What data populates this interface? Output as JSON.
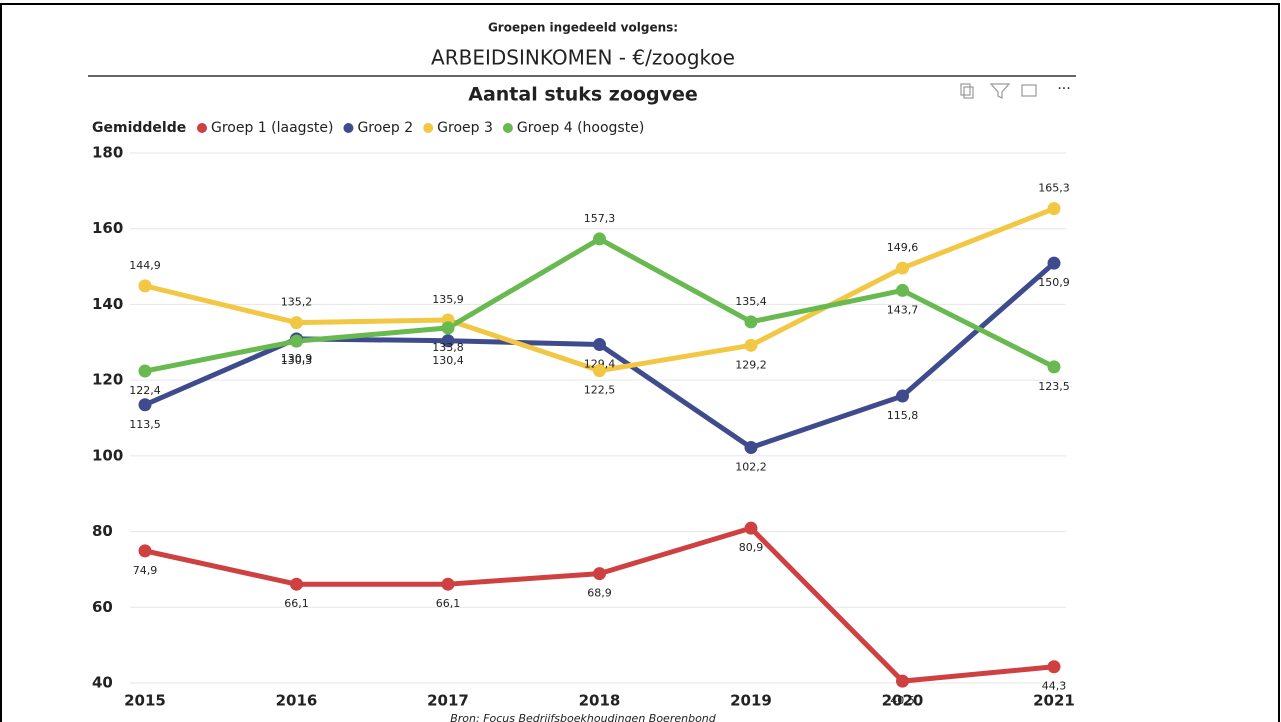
{
  "header": {
    "label": "Groepen ingedeeld volgens:",
    "title": "ARBEIDSINKOMEN - €/zoogkoe"
  },
  "chart_data": {
    "type": "line",
    "title": "Aantal stuks zoogvee",
    "legend_title": "Gemiddelde",
    "categories": [
      "2015",
      "2016",
      "2017",
      "2018",
      "2019",
      "2020",
      "2021"
    ],
    "series": [
      {
        "name": "Groep 1 (laagste)",
        "color": "#cf4040",
        "values": [
          74.9,
          66.1,
          66.1,
          68.9,
          80.9,
          40.5,
          44.3
        ],
        "value_labels": [
          "74,9",
          "66,1",
          "66,1",
          "68,9",
          "80,9",
          "40,5",
          "44,3"
        ]
      },
      {
        "name": "Groep 2",
        "color": "#3e4c8d",
        "values": [
          113.5,
          130.9,
          130.4,
          129.4,
          102.2,
          115.8,
          150.9
        ],
        "value_labels": [
          "113,5",
          "130,9",
          "130,4",
          "129,4",
          "102,2",
          "115,8",
          "150,9"
        ]
      },
      {
        "name": "Groep 3",
        "color": "#f2c744",
        "values": [
          144.9,
          135.2,
          135.9,
          122.5,
          129.2,
          149.6,
          165.3
        ],
        "value_labels": [
          "144,9",
          "135,2",
          "135,9",
          "122,5",
          "129,2",
          "149,6",
          "165,3"
        ]
      },
      {
        "name": "Groep 4 (hoogste)",
        "color": "#68b94f",
        "values": [
          122.4,
          130.3,
          133.8,
          157.3,
          135.4,
          143.7,
          123.5
        ],
        "value_labels": [
          "122,4",
          "130,3",
          "133,8",
          "157,3",
          "135,4",
          "143,7",
          "123,5"
        ]
      }
    ],
    "ylim": [
      40,
      180
    ],
    "yticks": [
      40,
      60,
      80,
      100,
      120,
      140,
      160,
      180
    ],
    "grid": true,
    "source": "Bron: Focus Bedrijfsboekhoudingen Boerenbond"
  }
}
